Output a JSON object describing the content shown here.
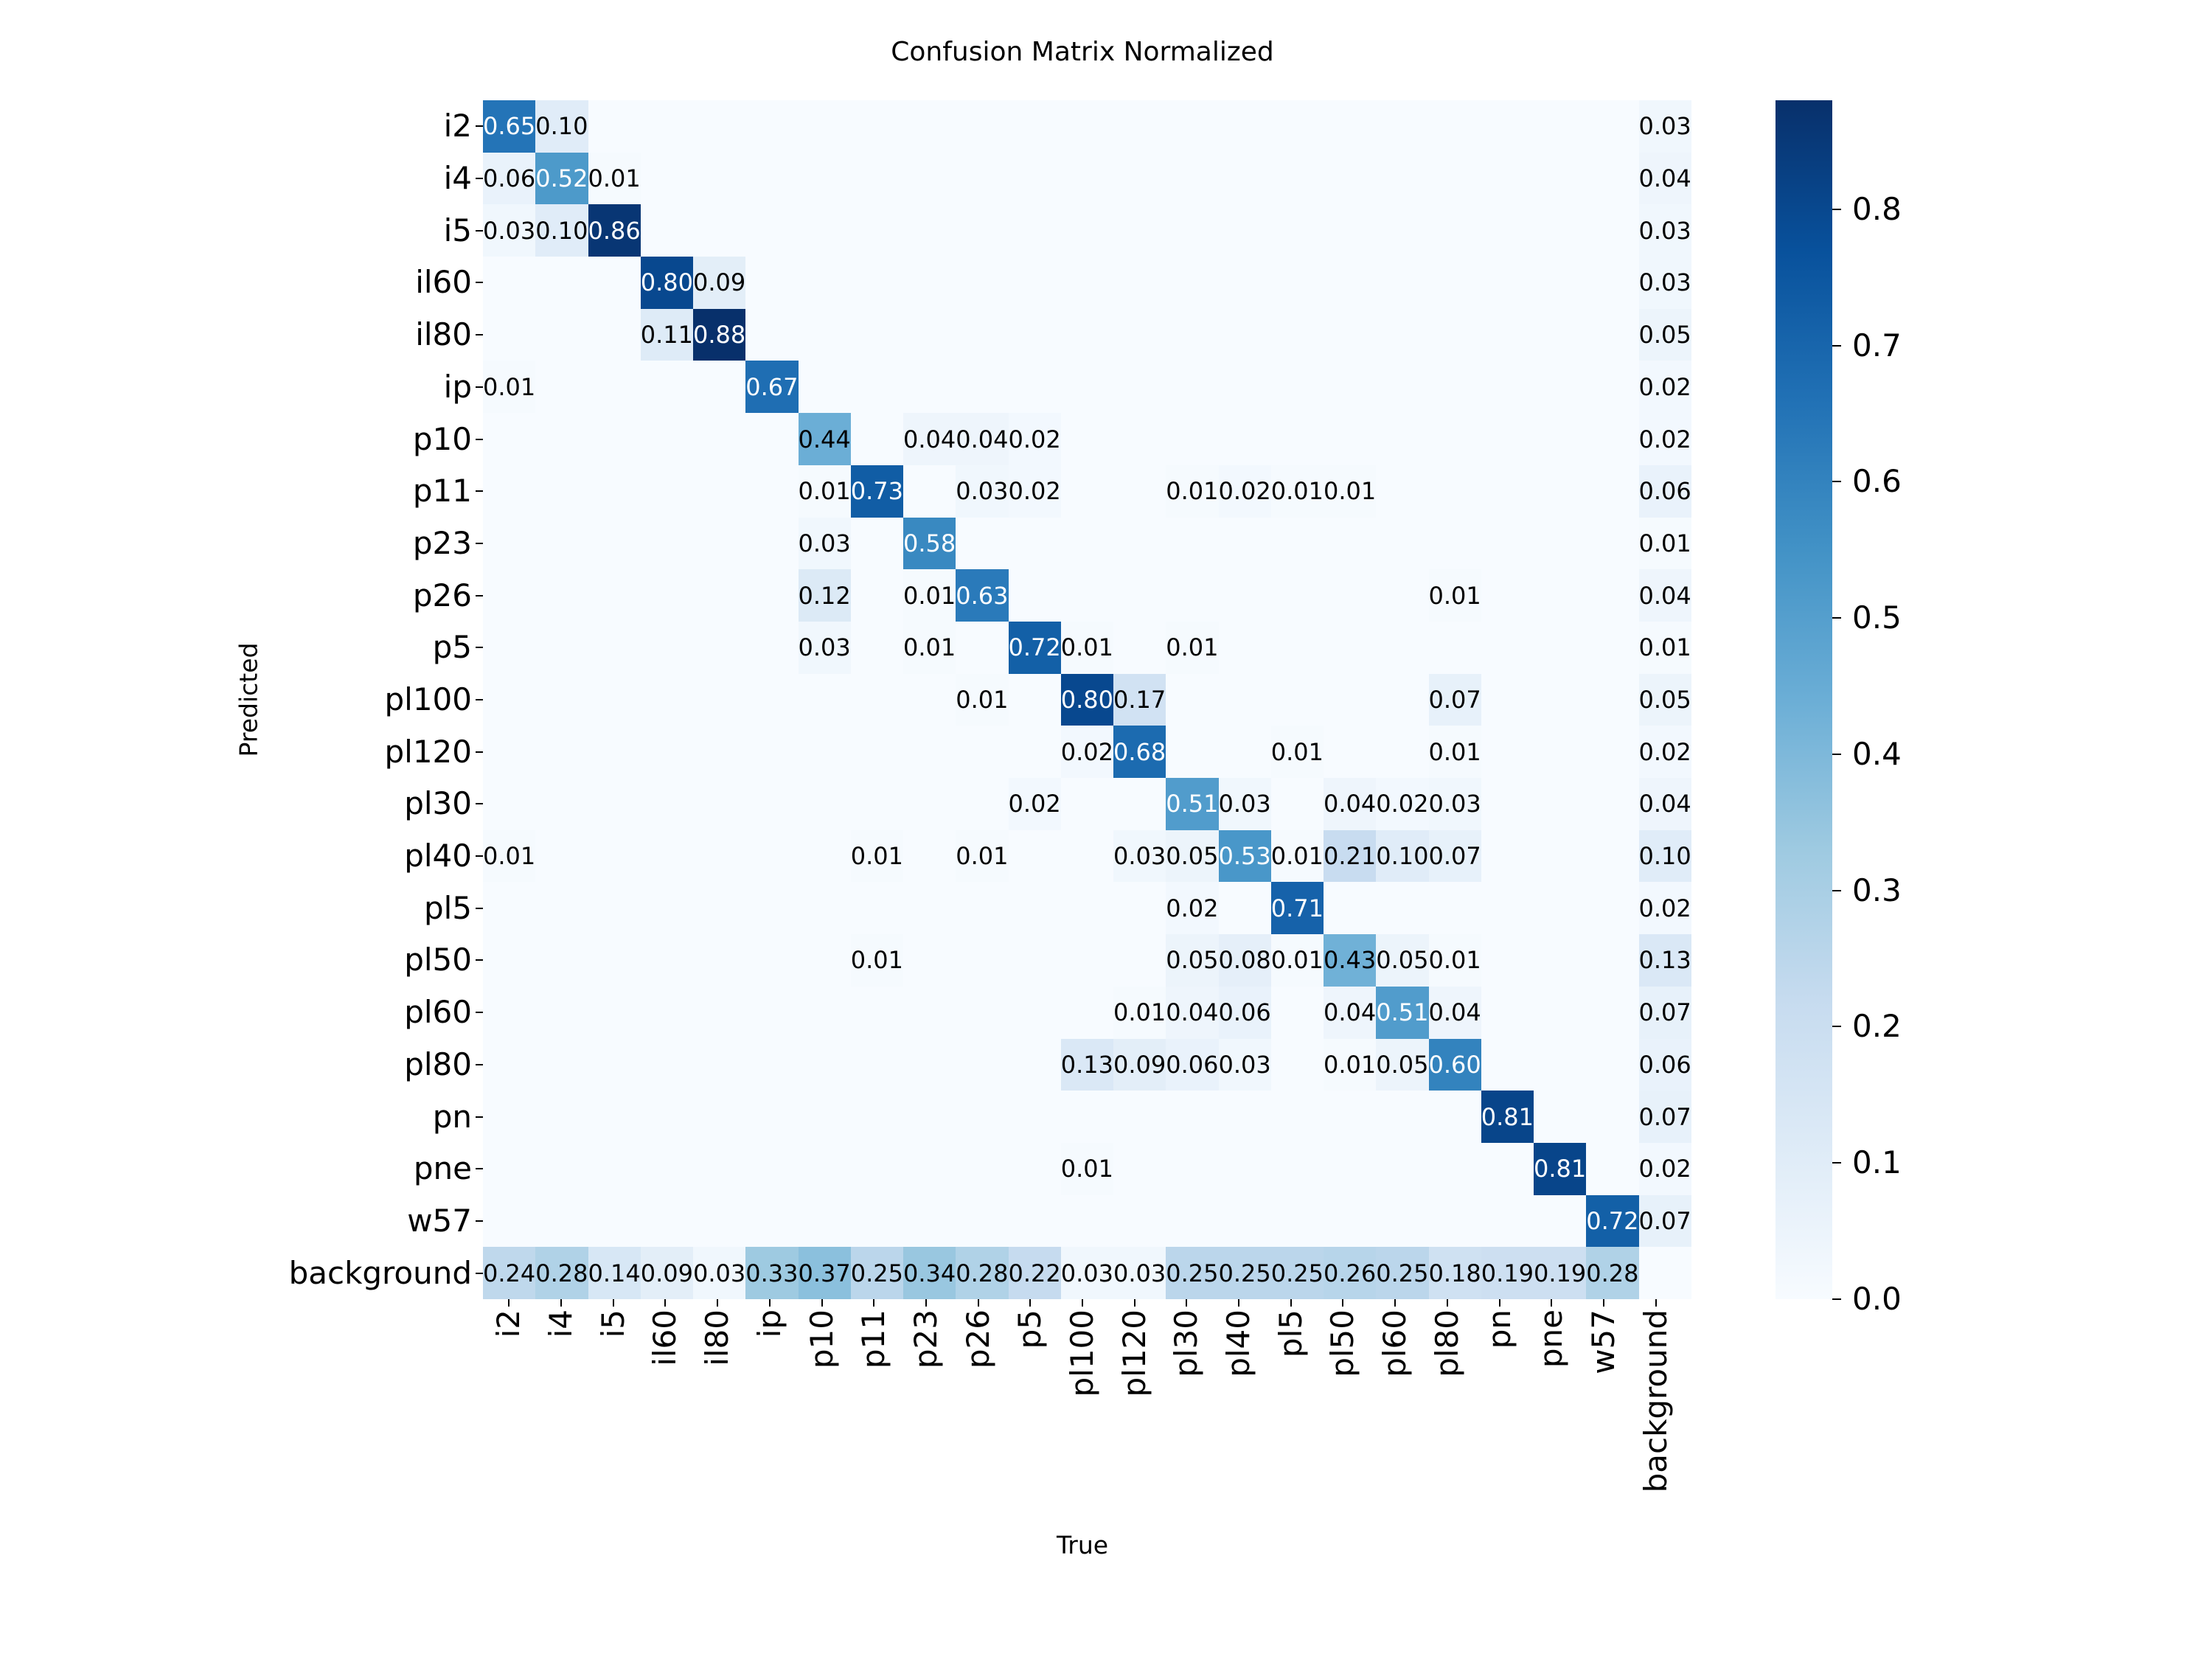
{
  "figure": {
    "background_color": "#ffffff",
    "text_color": "#000000"
  },
  "chart_data": {
    "type": "heatmap",
    "title": "Confusion Matrix Normalized",
    "xlabel": "True",
    "ylabel": "Predicted",
    "legend_position": "right-colorbar",
    "grid": false,
    "categories": [
      "i2",
      "i4",
      "i5",
      "il60",
      "il80",
      "ip",
      "p10",
      "p11",
      "p23",
      "p26",
      "p5",
      "pl100",
      "pl120",
      "pl30",
      "pl40",
      "pl5",
      "pl50",
      "pl60",
      "pl80",
      "pn",
      "pne",
      "w57",
      "background"
    ],
    "matrix": [
      [
        0.65,
        0.1,
        null,
        null,
        null,
        null,
        null,
        null,
        null,
        null,
        null,
        null,
        null,
        null,
        null,
        null,
        null,
        null,
        null,
        null,
        null,
        null,
        0.03
      ],
      [
        0.06,
        0.52,
        0.01,
        null,
        null,
        null,
        null,
        null,
        null,
        null,
        null,
        null,
        null,
        null,
        null,
        null,
        null,
        null,
        null,
        null,
        null,
        null,
        0.04
      ],
      [
        0.03,
        0.1,
        0.86,
        null,
        null,
        null,
        null,
        null,
        null,
        null,
        null,
        null,
        null,
        null,
        null,
        null,
        null,
        null,
        null,
        null,
        null,
        null,
        0.03
      ],
      [
        null,
        null,
        null,
        0.8,
        0.09,
        null,
        null,
        null,
        null,
        null,
        null,
        null,
        null,
        null,
        null,
        null,
        null,
        null,
        null,
        null,
        null,
        null,
        0.03
      ],
      [
        null,
        null,
        null,
        0.11,
        0.88,
        null,
        null,
        null,
        null,
        null,
        null,
        null,
        null,
        null,
        null,
        null,
        null,
        null,
        null,
        null,
        null,
        null,
        0.05
      ],
      [
        0.01,
        null,
        null,
        null,
        null,
        0.67,
        null,
        null,
        null,
        null,
        null,
        null,
        null,
        null,
        null,
        null,
        null,
        null,
        null,
        null,
        null,
        null,
        0.02
      ],
      [
        null,
        null,
        null,
        null,
        null,
        null,
        0.44,
        null,
        0.04,
        0.04,
        0.02,
        null,
        null,
        null,
        null,
        null,
        null,
        null,
        null,
        null,
        null,
        null,
        0.02
      ],
      [
        null,
        null,
        null,
        null,
        null,
        null,
        0.01,
        0.73,
        null,
        0.03,
        0.02,
        null,
        null,
        0.01,
        0.02,
        0.01,
        0.01,
        null,
        null,
        null,
        null,
        null,
        0.06
      ],
      [
        null,
        null,
        null,
        null,
        null,
        null,
        0.03,
        null,
        0.58,
        null,
        null,
        null,
        null,
        null,
        null,
        null,
        null,
        null,
        null,
        null,
        null,
        null,
        0.01
      ],
      [
        null,
        null,
        null,
        null,
        null,
        null,
        0.12,
        null,
        0.01,
        0.63,
        null,
        null,
        null,
        null,
        null,
        null,
        null,
        null,
        0.01,
        null,
        null,
        null,
        0.04
      ],
      [
        null,
        null,
        null,
        null,
        null,
        null,
        0.03,
        null,
        0.01,
        null,
        0.72,
        0.01,
        null,
        0.01,
        null,
        null,
        null,
        null,
        null,
        null,
        null,
        null,
        0.01
      ],
      [
        null,
        null,
        null,
        null,
        null,
        null,
        null,
        null,
        null,
        0.01,
        null,
        0.8,
        0.17,
        null,
        null,
        null,
        null,
        null,
        0.07,
        null,
        null,
        null,
        0.05
      ],
      [
        null,
        null,
        null,
        null,
        null,
        null,
        null,
        null,
        null,
        null,
        null,
        0.02,
        0.68,
        null,
        null,
        0.01,
        null,
        null,
        0.01,
        null,
        null,
        null,
        0.02
      ],
      [
        null,
        null,
        null,
        null,
        null,
        null,
        null,
        null,
        null,
        null,
        0.02,
        null,
        null,
        0.51,
        0.03,
        null,
        0.04,
        0.02,
        0.03,
        null,
        null,
        null,
        0.04
      ],
      [
        0.01,
        null,
        null,
        null,
        null,
        null,
        null,
        0.01,
        null,
        0.01,
        null,
        null,
        0.03,
        0.05,
        0.53,
        0.01,
        0.21,
        0.1,
        0.07,
        null,
        null,
        null,
        0.1
      ],
      [
        null,
        null,
        null,
        null,
        null,
        null,
        null,
        null,
        null,
        null,
        null,
        null,
        null,
        0.02,
        null,
        0.71,
        null,
        null,
        null,
        null,
        null,
        null,
        0.02
      ],
      [
        null,
        null,
        null,
        null,
        null,
        null,
        null,
        0.01,
        null,
        null,
        null,
        null,
        null,
        0.05,
        0.08,
        0.01,
        0.43,
        0.05,
        0.01,
        null,
        null,
        null,
        0.13
      ],
      [
        null,
        null,
        null,
        null,
        null,
        null,
        null,
        null,
        null,
        null,
        null,
        null,
        0.01,
        0.04,
        0.06,
        null,
        0.04,
        0.51,
        0.04,
        null,
        null,
        null,
        0.07
      ],
      [
        null,
        null,
        null,
        null,
        null,
        null,
        null,
        null,
        null,
        null,
        null,
        0.13,
        0.09,
        0.06,
        0.03,
        null,
        0.01,
        0.05,
        0.6,
        null,
        null,
        null,
        0.06
      ],
      [
        null,
        null,
        null,
        null,
        null,
        null,
        null,
        null,
        null,
        null,
        null,
        null,
        null,
        null,
        null,
        null,
        null,
        null,
        null,
        0.81,
        null,
        null,
        0.07
      ],
      [
        null,
        null,
        null,
        null,
        null,
        null,
        null,
        null,
        null,
        null,
        null,
        0.01,
        null,
        null,
        null,
        null,
        null,
        null,
        null,
        null,
        0.81,
        null,
        0.02
      ],
      [
        null,
        null,
        null,
        null,
        null,
        null,
        null,
        null,
        null,
        null,
        null,
        null,
        null,
        null,
        null,
        null,
        null,
        null,
        null,
        null,
        null,
        0.72,
        0.07
      ],
      [
        0.24,
        0.28,
        0.14,
        0.09,
        0.03,
        0.33,
        0.37,
        0.25,
        0.34,
        0.28,
        0.22,
        0.03,
        0.03,
        0.25,
        0.25,
        0.25,
        0.26,
        0.25,
        0.18,
        0.19,
        0.19,
        0.28,
        null
      ]
    ],
    "vmin": 0.0,
    "vmax": 0.88,
    "colormap": "Blues",
    "colormap_stops": [
      [
        0.0,
        "#f7fbff"
      ],
      [
        0.125,
        "#deebf7"
      ],
      [
        0.25,
        "#c6dbef"
      ],
      [
        0.375,
        "#9ecae1"
      ],
      [
        0.5,
        "#6baed6"
      ],
      [
        0.625,
        "#4292c6"
      ],
      [
        0.75,
        "#2171b5"
      ],
      [
        0.875,
        "#08519c"
      ],
      [
        1.0,
        "#08306b"
      ]
    ],
    "colorbar_ticks": [
      0.8,
      0.7,
      0.6,
      0.5,
      0.4,
      0.3,
      0.2,
      0.1,
      0.0
    ],
    "annotation_white_threshold": 0.44,
    "annotation_colors": {
      "dark": "#000000",
      "light": "#ffffff"
    }
  }
}
